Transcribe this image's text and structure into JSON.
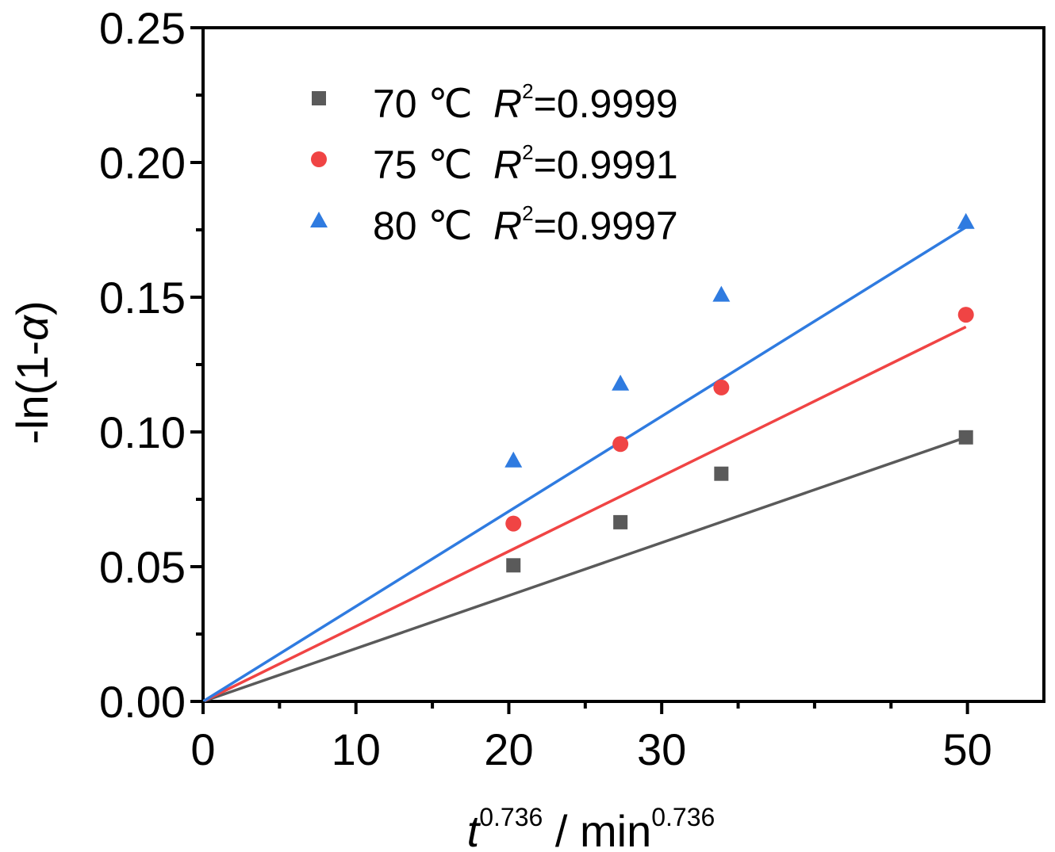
{
  "chart_data": {
    "type": "scatter",
    "xlabel_base": "t",
    "xlabel_exp": "0.736",
    "xlabel_unit_base": " / min",
    "xlabel_unit_exp": "0.736",
    "ylabel_prefix": "-ln(1-",
    "ylabel_symbol": "α",
    "ylabel_suffix": ")",
    "xlim": [
      0,
      55
    ],
    "ylim": [
      0,
      0.25
    ],
    "x_ticks": [
      0,
      10,
      20,
      30,
      50
    ],
    "x_tick_labels": [
      "0",
      "10",
      "20",
      "30",
      "50"
    ],
    "x_minor_ticks": [
      5,
      15,
      25,
      35,
      40,
      45
    ],
    "y_ticks": [
      0,
      0.05,
      0.1,
      0.15,
      0.2,
      0.25
    ],
    "y_tick_labels": [
      "0.00",
      "0.05",
      "0.10",
      "0.15",
      "0.20",
      "0.25"
    ],
    "y_minor_ticks": [
      0.025,
      0.075,
      0.125,
      0.175,
      0.225
    ],
    "grid": false,
    "legend_position": "top-left",
    "series": [
      {
        "name": "70 ℃",
        "r2_label": "R",
        "r2_exp": "2",
        "r2_value": "=0.9999",
        "color": "#5a5a5a",
        "marker": "square",
        "x": [
          20.3,
          27.3,
          33.9,
          49.9
        ],
        "y": [
          0.0505,
          0.0665,
          0.0845,
          0.098
        ],
        "fit": {
          "x": [
            0,
            49.9
          ],
          "y": [
            0,
            0.098
          ]
        }
      },
      {
        "name": "75 ℃",
        "r2_label": "R",
        "r2_exp": "2",
        "r2_value": "=0.9991",
        "color": "#f04444",
        "marker": "circle",
        "x": [
          20.3,
          27.3,
          33.9,
          49.9
        ],
        "y": [
          0.066,
          0.0955,
          0.1165,
          0.1435
        ],
        "fit": {
          "x": [
            0,
            49.9
          ],
          "y": [
            0,
            0.139
          ]
        }
      },
      {
        "name": "80 ℃",
        "r2_label": "R",
        "r2_exp": "2",
        "r2_value": "=0.9997",
        "color": "#2f7be0",
        "marker": "triangle",
        "x": [
          20.3,
          27.3,
          33.9,
          49.9
        ],
        "y": [
          0.0895,
          0.118,
          0.151,
          0.178
        ],
        "fit": {
          "x": [
            0,
            49.9
          ],
          "y": [
            0,
            0.176
          ]
        }
      }
    ]
  }
}
